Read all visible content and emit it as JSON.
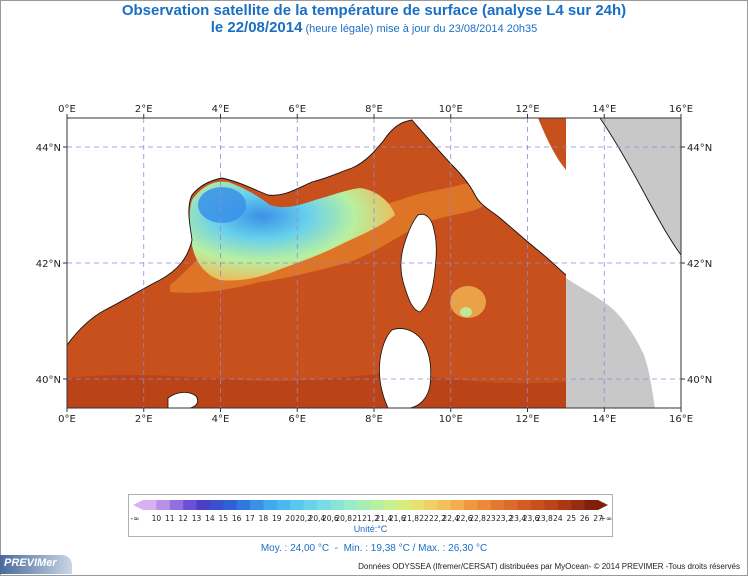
{
  "header": {
    "title": "Observation satellite de la température de surface (analyse L4 sur 24h)",
    "date": "le 22/08/2014",
    "subtitle": "(heure légale) mise à jour du 23/08/2014 20h35"
  },
  "map": {
    "lon_ticks": [
      "0°E",
      "2°E",
      "4°E",
      "6°E",
      "8°E",
      "10°E",
      "12°E",
      "14°E",
      "16°E"
    ],
    "lat_ticks": [
      "44°N",
      "42°N",
      "40°N"
    ],
    "lon_range": [
      0,
      16
    ],
    "lat_range": [
      39.5,
      44.5
    ],
    "colors": {
      "warm_sea": "#c8501c",
      "warm_sea_dark": "#b84218",
      "orange": "#e07a28",
      "cool_blue": "#3aa0e8",
      "land": "#ffffff",
      "gray": "#c8c8c8"
    }
  },
  "legend": {
    "labels": [
      "10",
      "11",
      "12",
      "13",
      "14",
      "15",
      "16",
      "17",
      "18",
      "19",
      "20",
      "20,2",
      "20,4",
      "20,6",
      "20,8",
      "21",
      "21,2",
      "21,4",
      "21,6",
      "21,8",
      "22",
      "22,2",
      "22,4",
      "22,6",
      "22,8",
      "23",
      "23,2",
      "23,4",
      "23,6",
      "23,8",
      "24",
      "25",
      "26",
      "27"
    ],
    "below": "-∞",
    "above": "+∞",
    "unit": "Unité:°C",
    "colors": [
      "#d9b0f0",
      "#b890e8",
      "#9070e0",
      "#6a50d8",
      "#4a40c8",
      "#3a50d0",
      "#3060d8",
      "#3078e0",
      "#3a90e8",
      "#40a8ec",
      "#48b8f0",
      "#58c8f0",
      "#68d4ec",
      "#78dce4",
      "#88e4d8",
      "#98ecc8",
      "#a8eeb4",
      "#b8f0a0",
      "#c8f08c",
      "#d8ec7c",
      "#e8e070",
      "#f0d064",
      "#f4c058",
      "#f4ac4c",
      "#f09840",
      "#ec8838",
      "#e47830",
      "#dc6a2a",
      "#d45c24",
      "#c8501e",
      "#bc4418",
      "#aa3814",
      "#962c10",
      "#80200c"
    ]
  },
  "stats": {
    "moy": "Moy. : 24,00 °C",
    "min": "Min. : 19,38 °C",
    "max": "Max. : 26,30 °C"
  },
  "credits": "Données ODYSSEA (Ifremer/CERSAT) distribuées par MyOcean- © 2014 PREVIMER -Tous droits réservés",
  "logo": "PREVIMer"
}
